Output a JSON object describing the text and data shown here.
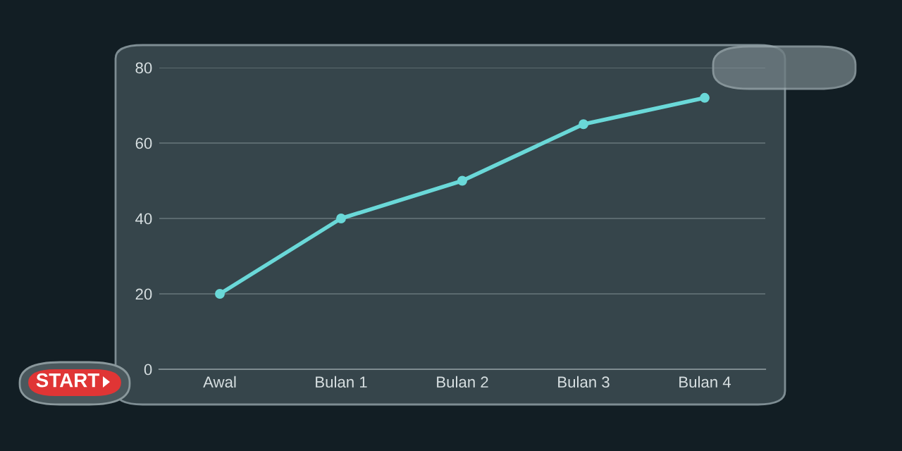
{
  "chart_data": {
    "type": "line",
    "categories": [
      "Awal",
      "Bulan 1",
      "Bulan 2",
      "Bulan 3",
      "Bulan 4"
    ],
    "series": [
      {
        "color": "#6ad8d8",
        "values": [
          20,
          40,
          50,
          65,
          72
        ]
      }
    ],
    "ylim": [
      0,
      80
    ],
    "yticks": [
      0,
      20,
      40,
      60,
      80
    ],
    "grid": "y",
    "marker": "circle",
    "line_style": "solid",
    "annotations": [
      "START"
    ]
  }
}
